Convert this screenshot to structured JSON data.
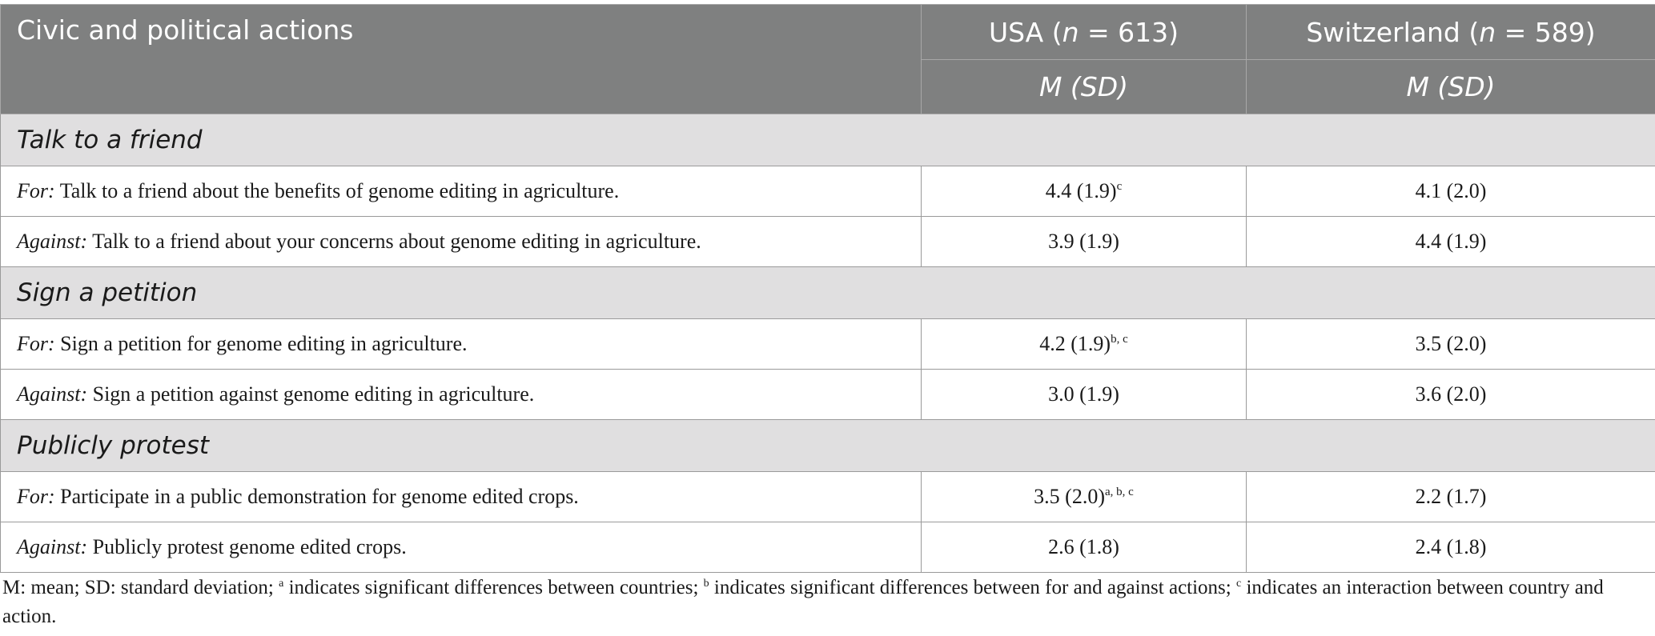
{
  "header": {
    "col1": "Civic and political actions",
    "usa": {
      "prefix": "USA (",
      "n": "n",
      "suffix": " = 613)"
    },
    "switzerland": {
      "prefix": "Switzerland (",
      "n": "n",
      "suffix": " = 589)"
    },
    "subheader_usa": "M (SD)",
    "subheader_switzerland": "M (SD)"
  },
  "sections": [
    {
      "title": "Talk to a friend",
      "rows": [
        {
          "stance": "For:",
          "text": " Talk to a friend about the benefits of genome editing in agriculture.",
          "usa": "4.4 (1.9)",
          "usa_sup": "c",
          "swiss": "4.1 (2.0)"
        },
        {
          "stance": "Against:",
          "text": " Talk to a friend about your concerns about genome editing in agriculture.",
          "usa": "3.9 (1.9)",
          "usa_sup": "",
          "swiss": "4.4 (1.9)"
        }
      ]
    },
    {
      "title": "Sign a petition",
      "rows": [
        {
          "stance": "For:",
          "text": " Sign a petition for genome editing in agriculture.",
          "usa": "4.2 (1.9)",
          "usa_sup": "b, c",
          "swiss": "3.5 (2.0)"
        },
        {
          "stance": "Against:",
          "text": " Sign a petition against genome editing in agriculture.",
          "usa": "3.0 (1.9)",
          "usa_sup": "",
          "swiss": "3.6 (2.0)"
        }
      ]
    },
    {
      "title": "Publicly protest",
      "rows": [
        {
          "stance": "For:",
          "text": " Participate in a public demonstration for genome edited crops.",
          "usa": "3.5 (2.0)",
          "usa_sup": "a, b, c",
          "swiss": "2.2 (1.7)"
        },
        {
          "stance": "Against:",
          "text": " Publicly protest genome edited crops.",
          "usa": "2.6 (1.8)",
          "usa_sup": "",
          "swiss": "2.4 (1.8)"
        }
      ]
    }
  ],
  "footnote": {
    "part1": "M: mean; SD: standard deviation; ",
    "sup_a": "a",
    "part2": " indicates significant differences between countries; ",
    "sup_b": "b",
    "part3": " indicates significant differences between for and against actions; ",
    "sup_c": "c",
    "part4": " indicates an interaction between country and action."
  }
}
